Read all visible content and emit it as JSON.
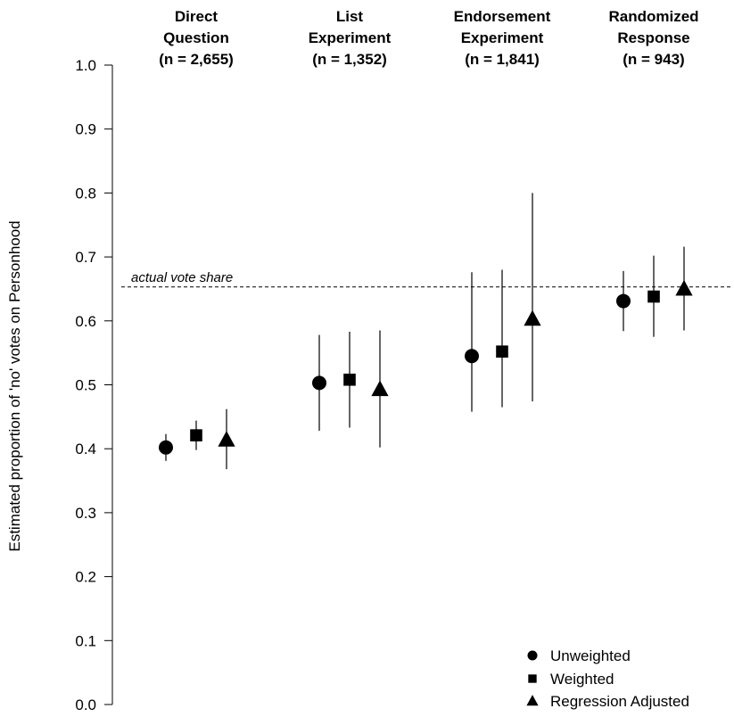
{
  "chart_data": {
    "type": "scatter",
    "ylabel": "Estimated proportion of 'no' votes on Personhood",
    "ylim": [
      0,
      1
    ],
    "yticks": [
      "0.0",
      "0.1",
      "0.2",
      "0.3",
      "0.4",
      "0.5",
      "0.6",
      "0.7",
      "0.8",
      "0.9",
      "1.0"
    ],
    "grid": false,
    "groups": [
      {
        "lines": [
          "Direct",
          "Question",
          "(n = 2,655)"
        ]
      },
      {
        "lines": [
          "List",
          "Experiment",
          "(n = 1,352)"
        ]
      },
      {
        "lines": [
          "Endorsement",
          "Experiment",
          "(n = 1,841)"
        ]
      },
      {
        "lines": [
          "Randomized",
          "Response",
          "(n = 943)"
        ]
      }
    ],
    "series": [
      {
        "name": "Unweighted",
        "marker": "circle",
        "estimates": [
          0.402,
          0.503,
          0.545,
          0.631
        ],
        "lower": [
          0.381,
          0.428,
          0.458,
          0.584
        ],
        "upper": [
          0.423,
          0.578,
          0.676,
          0.678
        ]
      },
      {
        "name": "Weighted",
        "marker": "square",
        "estimates": [
          0.421,
          0.508,
          0.552,
          0.638
        ],
        "lower": [
          0.398,
          0.433,
          0.465,
          0.575
        ],
        "upper": [
          0.444,
          0.583,
          0.68,
          0.702
        ]
      },
      {
        "name": "Regression Adjusted",
        "marker": "triangle",
        "estimates": [
          0.414,
          0.493,
          0.603,
          0.65
        ],
        "lower": [
          0.368,
          0.402,
          0.474,
          0.585
        ],
        "upper": [
          0.462,
          0.585,
          0.8,
          0.716
        ]
      }
    ],
    "reference_line": {
      "value": 0.653,
      "label": "actual vote share",
      "style": "dashed"
    },
    "legend_position": "bottom-right",
    "colors": {
      "marker": "#000000",
      "line": "#000000",
      "background": "#ffffff"
    }
  }
}
